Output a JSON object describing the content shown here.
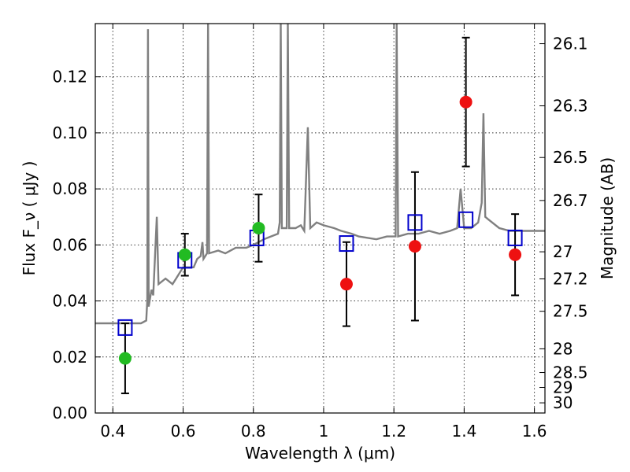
{
  "chart_data": {
    "type": "scatter",
    "title": "",
    "xlabel": "Wavelength  λ (μm)",
    "ylabel": "Flux  F_ν  ( μJy )",
    "y2label": "Magnitude (AB)",
    "xlim": [
      0.35,
      1.63
    ],
    "ylim": [
      0.0,
      0.139
    ],
    "grid": true,
    "x_ticks": [
      {
        "value": 0.4,
        "label": "0.4"
      },
      {
        "value": 0.6,
        "label": "0.6"
      },
      {
        "value": 0.8,
        "label": "0.8"
      },
      {
        "value": 1.0,
        "label": "1"
      },
      {
        "value": 1.2,
        "label": "1.2"
      },
      {
        "value": 1.4,
        "label": "1.4"
      },
      {
        "value": 1.6,
        "label": "1.6"
      }
    ],
    "y_ticks": [
      {
        "value": 0.0,
        "label": "0.00"
      },
      {
        "value": 0.02,
        "label": "0.02"
      },
      {
        "value": 0.04,
        "label": "0.04"
      },
      {
        "value": 0.06,
        "label": "0.06"
      },
      {
        "value": 0.08,
        "label": "0.08"
      },
      {
        "value": 0.1,
        "label": "0.10"
      },
      {
        "value": 0.12,
        "label": "0.12"
      }
    ],
    "y2_ticks": [
      {
        "mag": 26.1,
        "label": "26.1"
      },
      {
        "mag": 26.3,
        "label": "26.3"
      },
      {
        "mag": 26.5,
        "label": "26.5"
      },
      {
        "mag": 26.7,
        "label": "26.7"
      },
      {
        "mag": 27.0,
        "label": "27"
      },
      {
        "mag": 27.2,
        "label": "27.2"
      },
      {
        "mag": 27.5,
        "label": "27.5"
      },
      {
        "mag": 28.0,
        "label": "28"
      },
      {
        "mag": 28.5,
        "label": "28.5"
      },
      {
        "mag": 29.0,
        "label": "29"
      },
      {
        "mag": 30.0,
        "label": "30"
      }
    ],
    "series": [
      {
        "kind": "spectrum",
        "color": "#808080",
        "points": [
          [
            0.35,
            0.032
          ],
          [
            0.4,
            0.032
          ],
          [
            0.44,
            0.032
          ],
          [
            0.48,
            0.032
          ],
          [
            0.495,
            0.033
          ],
          [
            0.498,
            0.04
          ],
          [
            0.5,
            0.137
          ],
          [
            0.502,
            0.038
          ],
          [
            0.51,
            0.044
          ],
          [
            0.515,
            0.042
          ],
          [
            0.525,
            0.07
          ],
          [
            0.53,
            0.046
          ],
          [
            0.55,
            0.048
          ],
          [
            0.57,
            0.046
          ],
          [
            0.58,
            0.048
          ],
          [
            0.6,
            0.052
          ],
          [
            0.63,
            0.052
          ],
          [
            0.64,
            0.055
          ],
          [
            0.65,
            0.056
          ],
          [
            0.655,
            0.061
          ],
          [
            0.658,
            0.055
          ],
          [
            0.668,
            0.057
          ],
          [
            0.671,
            0.139
          ],
          [
            0.674,
            0.057
          ],
          [
            0.7,
            0.058
          ],
          [
            0.72,
            0.057
          ],
          [
            0.75,
            0.059
          ],
          [
            0.78,
            0.059
          ],
          [
            0.8,
            0.06
          ],
          [
            0.83,
            0.062
          ],
          [
            0.85,
            0.063
          ],
          [
            0.87,
            0.064
          ],
          [
            0.875,
            0.068
          ],
          [
            0.878,
            0.139
          ],
          [
            0.881,
            0.066
          ],
          [
            0.895,
            0.066
          ],
          [
            0.898,
            0.139
          ],
          [
            0.902,
            0.066
          ],
          [
            0.92,
            0.066
          ],
          [
            0.935,
            0.067
          ],
          [
            0.945,
            0.065
          ],
          [
            0.955,
            0.102
          ],
          [
            0.962,
            0.066
          ],
          [
            0.98,
            0.068
          ],
          [
            1.0,
            0.067
          ],
          [
            1.03,
            0.066
          ],
          [
            1.05,
            0.065
          ],
          [
            1.08,
            0.064
          ],
          [
            1.1,
            0.063
          ],
          [
            1.15,
            0.062
          ],
          [
            1.18,
            0.063
          ],
          [
            1.205,
            0.063
          ],
          [
            1.208,
            0.139
          ],
          [
            1.212,
            0.063
          ],
          [
            1.24,
            0.064
          ],
          [
            1.27,
            0.064
          ],
          [
            1.3,
            0.065
          ],
          [
            1.33,
            0.064
          ],
          [
            1.36,
            0.065
          ],
          [
            1.38,
            0.066
          ],
          [
            1.39,
            0.08
          ],
          [
            1.4,
            0.066
          ],
          [
            1.42,
            0.066
          ],
          [
            1.44,
            0.068
          ],
          [
            1.45,
            0.075
          ],
          [
            1.455,
            0.107
          ],
          [
            1.46,
            0.07
          ],
          [
            1.47,
            0.069
          ],
          [
            1.5,
            0.066
          ],
          [
            1.53,
            0.065
          ],
          [
            1.56,
            0.065
          ],
          [
            1.63,
            0.065
          ]
        ]
      },
      {
        "kind": "model_photometry",
        "marker": "open-square",
        "color": "#0000cc",
        "x": [
          0.435,
          0.605,
          0.81,
          1.065,
          1.26,
          1.405,
          1.545
        ],
        "y": [
          0.0305,
          0.0545,
          0.0625,
          0.0605,
          0.068,
          0.069,
          0.0625
        ]
      },
      {
        "kind": "observed_optical",
        "marker": "filled-circle",
        "color": "#22bb22",
        "x": [
          0.435,
          0.605,
          0.815
        ],
        "y": [
          0.0195,
          0.0565,
          0.066
        ],
        "yerr": [
          0.0125,
          0.0075,
          0.012
        ]
      },
      {
        "kind": "observed_nir",
        "marker": "filled-circle",
        "color": "#ee1111",
        "x": [
          1.065,
          1.26,
          1.405,
          1.545
        ],
        "y": [
          0.046,
          0.0595,
          0.111,
          0.0565
        ],
        "yerr": [
          0.015,
          0.0265,
          0.023,
          0.0145
        ]
      }
    ]
  }
}
